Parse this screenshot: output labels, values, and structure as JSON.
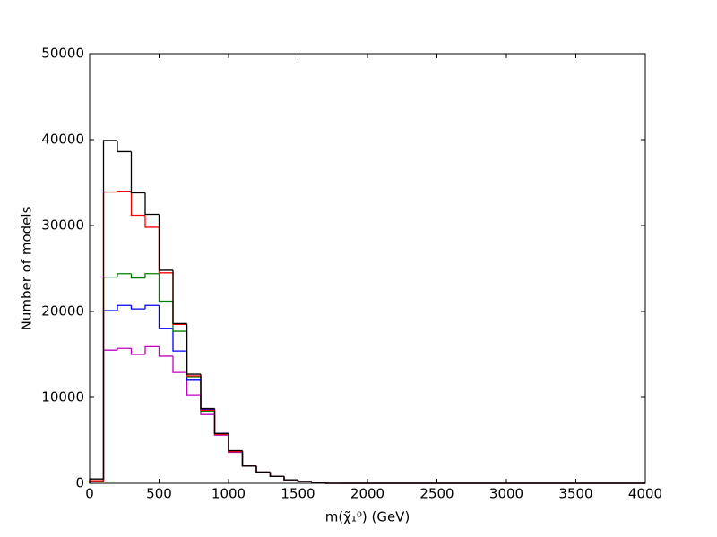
{
  "chart_data": {
    "type": "histogram",
    "xlabel": "m(χ̃₁⁰) (GeV)",
    "ylabel": "Number of models",
    "bins": [
      0,
      100,
      200,
      300,
      400,
      500,
      600,
      700,
      800,
      900,
      1000,
      1100,
      1200,
      1300,
      1400,
      1500,
      1600,
      1700,
      1800,
      1900,
      2000,
      2100,
      2200,
      2300,
      2400,
      2500,
      2600,
      2700,
      2800,
      2900,
      3000,
      3100,
      3200,
      3300,
      3400,
      3500,
      3600,
      3700,
      3800,
      3900,
      4000
    ],
    "series": [
      {
        "color": "#000000",
        "values": [
          500,
          39900,
          38600,
          33800,
          31300,
          24800,
          18600,
          12700,
          8700,
          5800,
          3800,
          2000,
          1300,
          800,
          400,
          200,
          100,
          0,
          0,
          0,
          0,
          0,
          0,
          0,
          0,
          0,
          0,
          0,
          0,
          0,
          0,
          0,
          0,
          0,
          0,
          0,
          0,
          0,
          0,
          0
        ]
      },
      {
        "color": "#ff0000",
        "values": [
          300,
          33900,
          34000,
          31200,
          29800,
          24500,
          18500,
          12500,
          8500,
          5700,
          3700,
          2000,
          1300,
          800,
          400,
          200,
          100,
          0,
          0,
          0,
          0,
          0,
          0,
          0,
          0,
          0,
          0,
          0,
          0,
          0,
          0,
          0,
          0,
          0,
          0,
          0,
          0,
          0,
          0,
          0
        ]
      },
      {
        "color": "#008000",
        "values": [
          300,
          24000,
          24400,
          23900,
          24400,
          21200,
          17700,
          12400,
          8400,
          5700,
          3700,
          2000,
          1300,
          800,
          400,
          200,
          100,
          0,
          0,
          0,
          0,
          0,
          0,
          0,
          0,
          0,
          0,
          0,
          0,
          0,
          0,
          0,
          0,
          0,
          0,
          0,
          0,
          0,
          0,
          0
        ]
      },
      {
        "color": "#0000ff",
        "values": [
          200,
          20100,
          20700,
          20300,
          20700,
          18000,
          15400,
          12000,
          8600,
          5800,
          3700,
          2000,
          1300,
          800,
          400,
          200,
          100,
          0,
          0,
          0,
          0,
          0,
          0,
          0,
          0,
          0,
          0,
          0,
          0,
          0,
          0,
          0,
          0,
          0,
          0,
          0,
          0,
          0,
          0,
          0
        ]
      },
      {
        "color": "#bf00bf",
        "values": [
          200,
          15500,
          15700,
          15000,
          15900,
          14800,
          12900,
          10300,
          8000,
          5600,
          3600,
          2000,
          1300,
          800,
          400,
          200,
          100,
          0,
          0,
          0,
          0,
          0,
          0,
          0,
          0,
          0,
          0,
          0,
          0,
          0,
          0,
          0,
          0,
          0,
          0,
          0,
          0,
          0,
          0,
          0
        ]
      }
    ],
    "xlim": [
      0,
      4000
    ],
    "xticks": [
      0,
      500,
      1000,
      1500,
      2000,
      2500,
      3000,
      3500,
      4000
    ],
    "ylim": [
      0,
      50000
    ],
    "yticks": [
      0,
      10000,
      20000,
      30000,
      40000,
      50000
    ]
  }
}
